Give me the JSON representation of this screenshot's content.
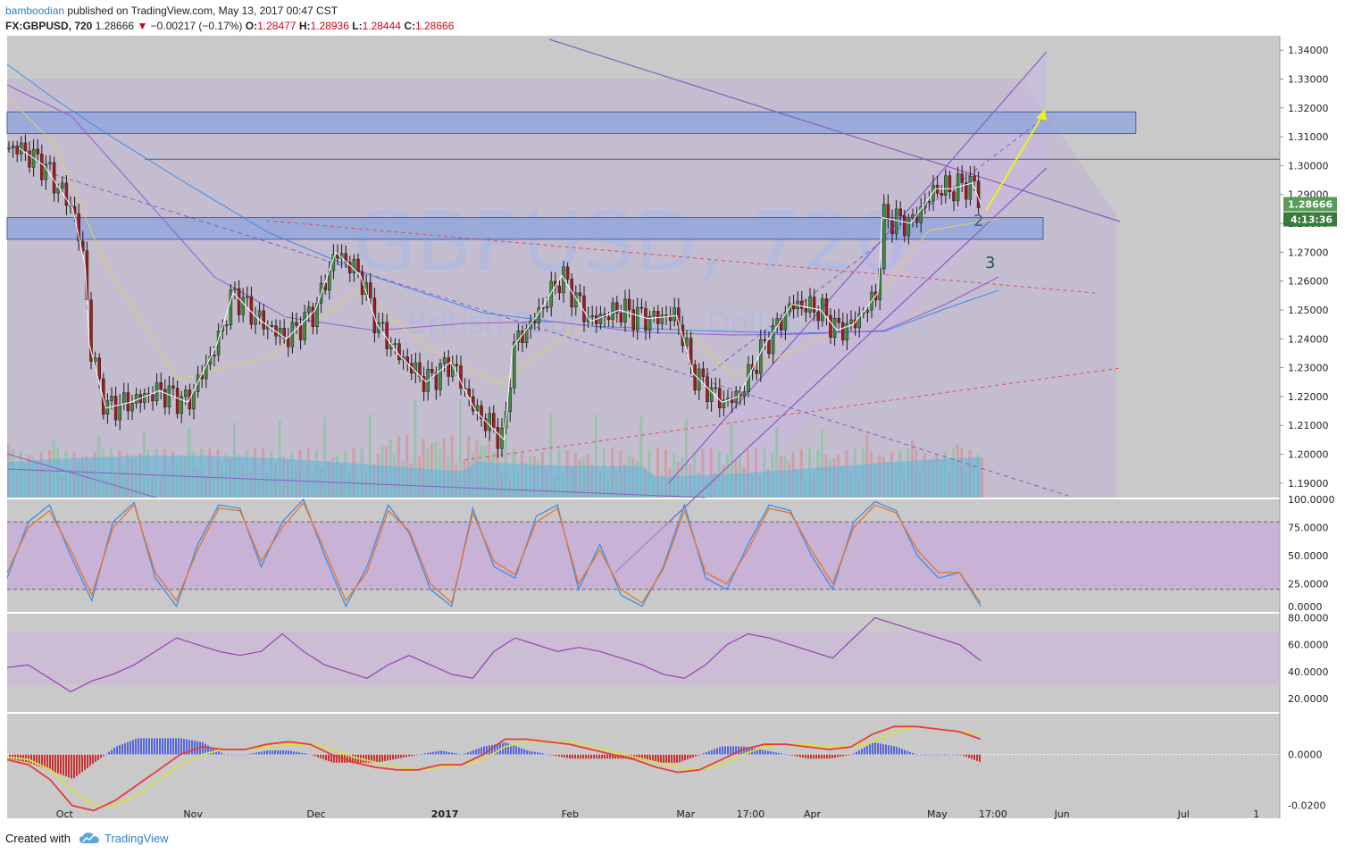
{
  "header": {
    "author": "bamboodian",
    "published_text": "published on TradingView.com, May 13, 2017 00:47 CST",
    "symbol": "FX:GBPUSD, 720",
    "last": "1.28666",
    "change": "−0.00217 (−0.17%)",
    "o_label": "O:",
    "o_value": "1.28477",
    "h_label": "H:",
    "h_value": "1.28936",
    "l_label": "L:",
    "l_value": "1.28444",
    "c_label": "C:",
    "c_value": "1.28666"
  },
  "watermark": {
    "symbol": "GBPUSD, 720",
    "subtitle": "British Pound / U.S. Dollar"
  },
  "footer": {
    "created_with": "Created with",
    "brand": "TradingView"
  },
  "colors": {
    "background": "#c9c9c9",
    "bull": "#3c8f3c",
    "bear": "#a11c1c",
    "zone": "#8ea4dc",
    "channel": "#8a5cc4",
    "stoch_k": "#3d8ee8",
    "stoch_d": "#e8742a",
    "rsi": "#9b3fb5",
    "macd_line": "#e63c3c",
    "signal_line": "#d8e040",
    "accent": "#2d7fc6"
  },
  "chart_data": [
    {
      "type": "candlestick",
      "panel": "price",
      "symbol": "FX:GBPUSD",
      "interval": "720",
      "ylim": [
        1.185,
        1.345
      ],
      "y_ticks": [
        "1.34000",
        "1.33000",
        "1.32000",
        "1.31000",
        "1.30000",
        "1.29000",
        "1.28000",
        "1.27000",
        "1.26000",
        "1.25000",
        "1.24000",
        "1.23000",
        "1.22000",
        "1.21000",
        "1.20000",
        "1.19000"
      ],
      "x_ticks": [
        "Oct",
        "Nov",
        "Dec",
        "2017",
        "Feb",
        "Mar",
        "17:00",
        "Apr",
        "May",
        "17:00",
        "Jun",
        "Jul",
        "1"
      ],
      "last_price_label": "1.28666",
      "countdown_label": "4:13:36",
      "annotations": [
        "2",
        "3"
      ],
      "close_path": [
        [
          "2016-09-20",
          1.306
        ],
        [
          "2016-09-26",
          1.3
        ],
        [
          "2016-10-03",
          1.285
        ],
        [
          "2016-10-06",
          1.265
        ],
        [
          "2016-10-07",
          1.238
        ],
        [
          "2016-10-11",
          1.216
        ],
        [
          "2016-10-17",
          1.218
        ],
        [
          "2016-10-24",
          1.222
        ],
        [
          "2016-10-31",
          1.218
        ],
        [
          "2016-11-07",
          1.238
        ],
        [
          "2016-11-11",
          1.256
        ],
        [
          "2016-11-17",
          1.247
        ],
        [
          "2016-11-24",
          1.24
        ],
        [
          "2016-12-01",
          1.25
        ],
        [
          "2016-12-06",
          1.27
        ],
        [
          "2016-12-12",
          1.262
        ],
        [
          "2016-12-16",
          1.245
        ],
        [
          "2016-12-21",
          1.235
        ],
        [
          "2016-12-28",
          1.225
        ],
        [
          "2017-01-03",
          1.232
        ],
        [
          "2017-01-09",
          1.215
        ],
        [
          "2017-01-16",
          1.205
        ],
        [
          "2017-01-18",
          1.237
        ],
        [
          "2017-01-24",
          1.248
        ],
        [
          "2017-01-30",
          1.262
        ],
        [
          "2017-02-02",
          1.255
        ],
        [
          "2017-02-06",
          1.246
        ],
        [
          "2017-02-13",
          1.25
        ],
        [
          "2017-02-20",
          1.247
        ],
        [
          "2017-02-27",
          1.248
        ],
        [
          "2017-03-03",
          1.228
        ],
        [
          "2017-03-10",
          1.218
        ],
        [
          "2017-03-14",
          1.22
        ],
        [
          "2017-03-20",
          1.237
        ],
        [
          "2017-03-27",
          1.252
        ],
        [
          "2017-04-03",
          1.25
        ],
        [
          "2017-04-07",
          1.243
        ],
        [
          "2017-04-11",
          1.245
        ],
        [
          "2017-04-17",
          1.256
        ],
        [
          "2017-04-18",
          1.282
        ],
        [
          "2017-04-25",
          1.28
        ],
        [
          "2017-05-01",
          1.292
        ],
        [
          "2017-05-05",
          1.292
        ],
        [
          "2017-05-10",
          1.294
        ],
        [
          "2017-05-12",
          1.2867
        ]
      ]
    },
    {
      "type": "line",
      "panel": "stochastic",
      "ylim": [
        0,
        100
      ],
      "y_ticks": [
        "100.0000",
        "75.0000",
        "50.0000",
        "25.0000",
        "0.0000"
      ],
      "series": [
        {
          "name": "%K",
          "values": [
            30,
            80,
            95,
            50,
            10,
            80,
            97,
            30,
            5,
            60,
            95,
            92,
            40,
            80,
            100,
            50,
            5,
            40,
            95,
            70,
            20,
            5,
            92,
            40,
            30,
            85,
            95,
            20,
            60,
            15,
            5,
            40,
            95,
            30,
            20,
            60,
            95,
            90,
            50,
            20,
            80,
            98,
            90,
            50,
            30,
            35,
            5
          ]
        },
        {
          "name": "%D",
          "values": [
            35,
            75,
            90,
            55,
            15,
            75,
            95,
            35,
            10,
            55,
            92,
            90,
            45,
            75,
            97,
            55,
            10,
            35,
            90,
            72,
            25,
            8,
            88,
            45,
            33,
            80,
            92,
            25,
            55,
            20,
            8,
            38,
            90,
            35,
            25,
            55,
            92,
            88,
            55,
            25,
            75,
            95,
            88,
            55,
            35,
            35,
            8
          ]
        }
      ]
    },
    {
      "type": "line",
      "panel": "rsi",
      "ylim": [
        10,
        83
      ],
      "y_ticks": [
        "80.0000",
        "60.0000",
        "40.0000",
        "20.0000"
      ],
      "series": [
        {
          "name": "RSI",
          "values": [
            43,
            45,
            35,
            25,
            33,
            38,
            45,
            55,
            65,
            60,
            55,
            52,
            55,
            68,
            55,
            45,
            40,
            35,
            45,
            52,
            45,
            38,
            35,
            55,
            65,
            60,
            55,
            58,
            55,
            50,
            45,
            38,
            35,
            45,
            60,
            68,
            65,
            60,
            55,
            50,
            65,
            80,
            75,
            70,
            65,
            60,
            48
          ]
        }
      ]
    },
    {
      "type": "line",
      "panel": "macd",
      "ylim": [
        -0.025,
        0.016
      ],
      "y_ticks": [
        "0.0000",
        "-0.0200"
      ],
      "series": [
        {
          "name": "MACD",
          "values": [
            -0.002,
            -0.004,
            -0.01,
            -0.02,
            -0.022,
            -0.018,
            -0.012,
            -0.006,
            0.0,
            0.003,
            0.002,
            0.002,
            0.004,
            0.005,
            0.004,
            0.0,
            -0.003,
            -0.005,
            -0.006,
            -0.006,
            -0.004,
            -0.004,
            0.0,
            0.006,
            0.006,
            0.005,
            0.004,
            0.002,
            0.0,
            -0.002,
            -0.005,
            -0.007,
            -0.006,
            -0.002,
            0.002,
            0.004,
            0.004,
            0.003,
            0.002,
            0.003,
            0.008,
            0.011,
            0.011,
            0.01,
            0.009,
            0.006
          ]
        },
        {
          "name": "Signal",
          "values": [
            -0.001,
            -0.002,
            -0.006,
            -0.014,
            -0.02,
            -0.02,
            -0.016,
            -0.01,
            -0.004,
            0.0,
            0.002,
            0.002,
            0.003,
            0.004,
            0.004,
            0.002,
            -0.001,
            -0.003,
            -0.005,
            -0.006,
            -0.005,
            -0.004,
            -0.002,
            0.003,
            0.005,
            0.005,
            0.005,
            0.003,
            0.001,
            -0.001,
            -0.003,
            -0.005,
            -0.006,
            -0.004,
            0.0,
            0.003,
            0.004,
            0.004,
            0.003,
            0.003,
            0.005,
            0.009,
            0.011,
            0.01,
            0.009,
            0.008
          ]
        }
      ]
    }
  ]
}
